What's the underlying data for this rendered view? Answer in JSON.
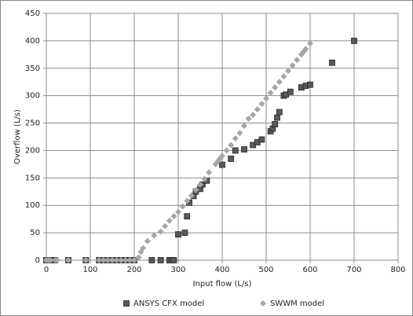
{
  "chart_data": {
    "type": "scatter",
    "xlabel": "Input flow (L/s)",
    "ylabel": "Overflow (L/s)",
    "xlim": [
      0,
      800
    ],
    "ylim": [
      0,
      450
    ],
    "xticks": [
      0,
      100,
      200,
      300,
      400,
      500,
      600,
      700,
      800
    ],
    "yticks": [
      0,
      50,
      100,
      150,
      200,
      250,
      300,
      350,
      400,
      450
    ],
    "grid": true,
    "legend": "bottom",
    "series": [
      {
        "name": "ANSYS CFX model",
        "color": "#595959",
        "marker": "square",
        "x": [
          0,
          5,
          10,
          15,
          20,
          50,
          90,
          120,
          130,
          140,
          150,
          160,
          170,
          180,
          190,
          200,
          240,
          260,
          280,
          285,
          290,
          300,
          315,
          320,
          325,
          335,
          340,
          350,
          355,
          365,
          400,
          420,
          430,
          450,
          470,
          480,
          490,
          510,
          515,
          520,
          525,
          530,
          540,
          545,
          555,
          580,
          590,
          600,
          650,
          700
        ],
        "values": [
          0,
          0,
          0,
          0,
          0,
          0,
          0,
          0,
          0,
          0,
          0,
          0,
          0,
          0,
          0,
          0,
          0,
          0,
          0,
          0,
          0,
          47,
          50,
          80,
          105,
          117,
          125,
          130,
          138,
          145,
          174,
          185,
          200,
          202,
          210,
          215,
          220,
          235,
          240,
          248,
          260,
          270,
          300,
          302,
          307,
          315,
          318,
          320,
          360,
          400
        ]
      },
      {
        "name": "SWWM model",
        "color": "#a6a6a6",
        "marker": "diamond",
        "x": [
          0,
          5,
          10,
          20,
          25,
          50,
          90,
          120,
          130,
          140,
          150,
          160,
          170,
          180,
          190,
          200,
          210,
          215,
          220,
          230,
          245,
          260,
          270,
          280,
          290,
          300,
          310,
          320,
          330,
          340,
          350,
          360,
          370,
          385,
          390,
          395,
          400,
          410,
          420,
          430,
          440,
          450,
          460,
          470,
          480,
          490,
          500,
          510,
          520,
          530,
          540,
          550,
          560,
          570,
          580,
          585,
          590,
          600
        ],
        "values": [
          0,
          0,
          0,
          0,
          0,
          0,
          0,
          0,
          0,
          0,
          0,
          0,
          0,
          0,
          0,
          0,
          5,
          15,
          22,
          35,
          45,
          52,
          62,
          72,
          80,
          88,
          98,
          108,
          118,
          128,
          138,
          148,
          160,
          175,
          180,
          185,
          190,
          200,
          210,
          222,
          232,
          245,
          258,
          265,
          275,
          285,
          295,
          305,
          315,
          325,
          335,
          345,
          355,
          365,
          375,
          380,
          385,
          395
        ]
      }
    ]
  }
}
